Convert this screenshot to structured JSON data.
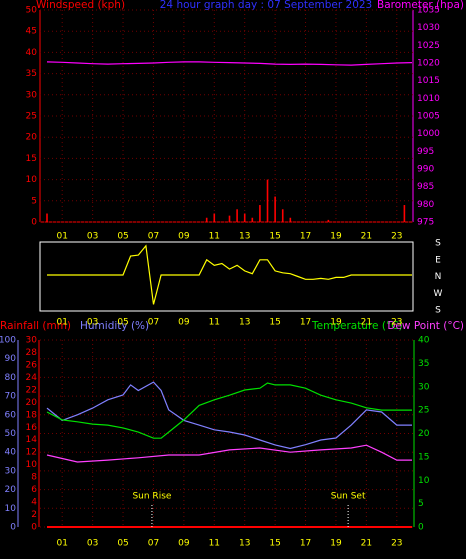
{
  "chart_data": [
    {
      "type": "bar",
      "title": "24 hour graph day : 07 September 2023",
      "xlim": [
        0,
        24
      ],
      "xticks": [
        {
          "value": 1,
          "label": "01"
        },
        {
          "value": 3,
          "label": "03"
        },
        {
          "value": 5,
          "label": "05"
        },
        {
          "value": 7,
          "label": "07"
        },
        {
          "value": 9,
          "label": "09"
        },
        {
          "value": 11,
          "label": "11"
        },
        {
          "value": 13,
          "label": "13"
        },
        {
          "value": 15,
          "label": "15"
        },
        {
          "value": 17,
          "label": "17"
        },
        {
          "value": 19,
          "label": "19"
        },
        {
          "value": 21,
          "label": "21"
        },
        {
          "value": 23,
          "label": "23"
        }
      ],
      "ylim": [
        0,
        50
      ],
      "yticks": [
        0,
        5,
        10,
        15,
        20,
        25,
        30,
        35,
        40,
        45,
        50
      ],
      "y2lim": [
        975,
        1035
      ],
      "y2ticks": [
        975,
        980,
        985,
        990,
        995,
        1000,
        1005,
        1010,
        1015,
        1020,
        1025,
        1030,
        1035
      ],
      "grid": true,
      "series": [
        {
          "name": "Windspeed (kph)",
          "color": "#ff0000",
          "x": [
            0,
            0.5,
            1,
            1.5,
            2,
            2.5,
            3,
            3.5,
            4,
            4.5,
            5,
            5.5,
            6,
            6.5,
            7,
            7.5,
            8,
            8.5,
            9,
            9.5,
            10,
            10.5,
            11,
            11.5,
            12,
            12.5,
            13,
            13.5,
            14,
            14.5,
            15,
            15.5,
            16,
            16.5,
            17,
            17.5,
            18,
            18.5,
            19,
            19.5,
            20,
            20.5,
            21,
            21.5,
            22,
            22.5,
            23,
            23.5,
            24
          ],
          "values": [
            2,
            0,
            0,
            0,
            0,
            0,
            0,
            0,
            0,
            0,
            0,
            0,
            0,
            0,
            0,
            0,
            0,
            0,
            0,
            0,
            0,
            1,
            2,
            0,
            1.5,
            3,
            2,
            1,
            4,
            10,
            6,
            3,
            1,
            0,
            0,
            0,
            0,
            0.5,
            0,
            0,
            0,
            0,
            0,
            0,
            0,
            0,
            0,
            4,
            0
          ]
        },
        {
          "name": "Barometer (hpa)",
          "color": "#ff00ff",
          "axis": "y2",
          "x": [
            0,
            1,
            2,
            3,
            4,
            5,
            6,
            7,
            8,
            9,
            10,
            11,
            12,
            13,
            14,
            15,
            16,
            17,
            18,
            19,
            20,
            21,
            22,
            23,
            24
          ],
          "values": [
            1020.3,
            1020.2,
            1020,
            1019.8,
            1019.7,
            1019.8,
            1019.9,
            1020,
            1020.2,
            1020.3,
            1020.3,
            1020.2,
            1020.1,
            1020,
            1019.9,
            1019.7,
            1019.6,
            1019.7,
            1019.6,
            1019.5,
            1019.4,
            1019.6,
            1019.8,
            1020,
            1020.1
          ]
        }
      ]
    },
    {
      "type": "line",
      "xlim": [
        0,
        24
      ],
      "xticks": [
        {
          "value": 1,
          "label": "01"
        },
        {
          "value": 3,
          "label": "03"
        },
        {
          "value": 5,
          "label": "05"
        },
        {
          "value": 7,
          "label": "07"
        },
        {
          "value": 9,
          "label": "09"
        },
        {
          "value": 11,
          "label": "11"
        },
        {
          "value": 13,
          "label": "13"
        },
        {
          "value": 15,
          "label": "15"
        },
        {
          "value": 17,
          "label": "17"
        },
        {
          "value": 19,
          "label": "19"
        },
        {
          "value": 21,
          "label": "21"
        },
        {
          "value": 23,
          "label": "23"
        }
      ],
      "ylim": [
        360,
        0
      ],
      "yticks": [
        {
          "value": 0,
          "label": "S"
        },
        {
          "value": 90,
          "label": "E"
        },
        {
          "value": 180,
          "label": "N"
        },
        {
          "value": 270,
          "label": "W"
        },
        {
          "value": 360,
          "label": "S"
        }
      ],
      "grid": false,
      "series": [
        {
          "color": "#ffff00",
          "x": [
            0,
            0.5,
            1,
            1.5,
            2,
            2.5,
            3,
            3.5,
            4,
            4.5,
            5,
            5.5,
            6,
            6.5,
            7,
            7.5,
            8,
            8.5,
            9,
            9.5,
            10,
            10.5,
            11,
            11.5,
            12,
            12.5,
            13,
            13.5,
            14,
            14.5,
            15,
            15.5,
            16,
            16.5,
            17,
            17.5,
            18,
            18.5,
            19,
            19.5,
            20,
            20.5,
            21,
            21.5,
            22,
            22.5,
            23,
            23.5,
            24
          ],
          "values": [
            172,
            172,
            172,
            172,
            172,
            172,
            172,
            172,
            172,
            172,
            172,
            70,
            65,
            15,
            330,
            172,
            172,
            172,
            172,
            172,
            172,
            90,
            120,
            110,
            140,
            120,
            150,
            165,
            90,
            90,
            150,
            160,
            165,
            180,
            195,
            195,
            190,
            195,
            185,
            185,
            172,
            172,
            172,
            172,
            172,
            172,
            172,
            172,
            172
          ]
        }
      ]
    },
    {
      "type": "line",
      "xlim": [
        0,
        24
      ],
      "xticks": [
        {
          "value": 1,
          "label": "01"
        },
        {
          "value": 3,
          "label": "03"
        },
        {
          "value": 5,
          "label": "05"
        },
        {
          "value": 7,
          "label": "07"
        },
        {
          "value": 9,
          "label": "09"
        },
        {
          "value": 11,
          "label": "11"
        },
        {
          "value": 13,
          "label": "13"
        },
        {
          "value": 15,
          "label": "15"
        },
        {
          "value": 17,
          "label": "17"
        },
        {
          "value": 19,
          "label": "19"
        },
        {
          "value": 21,
          "label": "21"
        },
        {
          "value": 23,
          "label": "23"
        }
      ],
      "ylim": [
        0,
        100
      ],
      "yticks": [
        0,
        10,
        20,
        30,
        40,
        50,
        60,
        70,
        80,
        90,
        100
      ],
      "y2lim": [
        0,
        40
      ],
      "y2ticks": [
        0,
        5,
        10,
        15,
        20,
        25,
        30,
        35,
        40
      ],
      "y3lim": [
        0,
        30
      ],
      "y3ticks": [
        0,
        2,
        4,
        6,
        8,
        10,
        12,
        14,
        16,
        18,
        20,
        22,
        24,
        26,
        28,
        30
      ],
      "grid": true,
      "series": [
        {
          "name": "Rainfall (mm)",
          "color": "#ff0000",
          "axis": "y3",
          "x": [
            0,
            1,
            2,
            3,
            4,
            5,
            6,
            7,
            8,
            9,
            10,
            11,
            12,
            13,
            14,
            15,
            16,
            17,
            18,
            19,
            20,
            21,
            22,
            23,
            24
          ],
          "values": [
            0,
            0,
            0,
            0,
            0,
            0,
            0,
            0,
            0,
            0,
            0,
            0,
            0,
            0,
            0,
            0,
            0,
            0,
            0,
            0,
            0,
            0,
            0,
            0,
            0
          ]
        },
        {
          "name": "Humidity (%)",
          "color": "#8080ff",
          "x": [
            0,
            1,
            2,
            3,
            4,
            5,
            5.5,
            6,
            7,
            7.5,
            8,
            9,
            10,
            11,
            12,
            13,
            14,
            15,
            16,
            17,
            18,
            19,
            20,
            21,
            22,
            23,
            24
          ],
          "values": [
            63.6,
            57,
            60,
            63.6,
            68,
            70.6,
            76,
            73,
            77.5,
            73,
            62.6,
            57,
            54.5,
            52,
            50.8,
            49.2,
            46.5,
            43.9,
            42,
            44,
            46.5,
            47.6,
            54.5,
            62.6,
            61.5,
            54.5,
            54.5
          ]
        },
        {
          "name": "Temperature (°C)",
          "color": "#00e000",
          "axis": "y2",
          "x": [
            0,
            1,
            2,
            3,
            4,
            5,
            6,
            7,
            7.5,
            8,
            9,
            10,
            11,
            12,
            13,
            14,
            14.5,
            15,
            16,
            17,
            18,
            19,
            20,
            21,
            22,
            23,
            24
          ],
          "values": [
            24.6,
            22.9,
            22.5,
            22,
            21.8,
            21.2,
            20.3,
            19,
            19,
            20.3,
            22.9,
            26,
            27.2,
            28.2,
            29.3,
            29.7,
            30.8,
            30.4,
            30.4,
            29.7,
            28.2,
            27.2,
            26.5,
            25.5,
            25,
            25,
            25
          ]
        },
        {
          "name": "Dew Point (°C)",
          "color": "#ff40ff",
          "axis": "y2",
          "x": [
            0,
            2,
            4,
            6,
            8,
            10,
            12,
            14,
            16,
            18,
            20,
            21,
            22,
            23,
            24
          ],
          "values": [
            15.4,
            13.9,
            14.3,
            14.8,
            15.4,
            15.4,
            16.5,
            16.9,
            16,
            16.5,
            16.9,
            17.5,
            16,
            14.3,
            14.3
          ]
        }
      ],
      "annotations": [
        {
          "text": "Sun Rise",
          "x": 6.9
        },
        {
          "text": "Sun Set",
          "x": 19.8
        }
      ]
    }
  ]
}
